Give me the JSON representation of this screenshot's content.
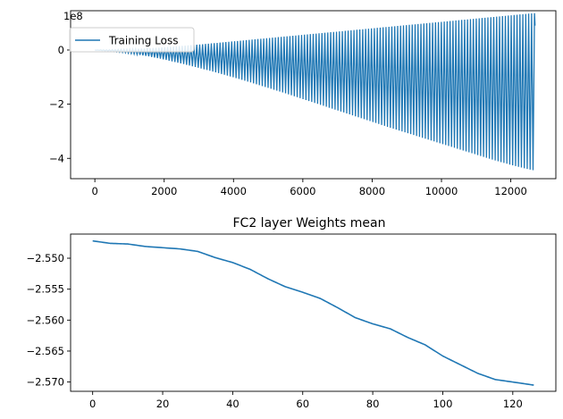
{
  "chart_data": [
    {
      "type": "line",
      "title": "",
      "xlabel": "",
      "ylabel": "",
      "y_offset_label": "1e8",
      "xlim": [
        -700,
        13300
      ],
      "ylim": [
        -4.75,
        1.45
      ],
      "x_ticks": [
        0,
        2000,
        4000,
        6000,
        8000,
        10000,
        12000
      ],
      "y_ticks": [
        -4,
        -2,
        0
      ],
      "y_tick_labels": [
        "−4",
        "−2",
        "0"
      ],
      "legend": {
        "position": "top-left",
        "entries": [
          "Training Loss"
        ]
      },
      "color": "#1f77b4",
      "series": [
        {
          "name": "Training Loss",
          "x": [
            0,
            500,
            1000,
            1500,
            2000,
            2500,
            3000,
            3500,
            4000,
            4500,
            5000,
            5500,
            6000,
            6500,
            7000,
            7500,
            8000,
            8500,
            9000,
            9500,
            10000,
            10500,
            11000,
            11500,
            12000,
            12500,
            12700
          ],
          "upper": [
            0.0,
            0.01,
            0.03,
            0.06,
            0.1,
            0.15,
            0.2,
            0.26,
            0.32,
            0.38,
            0.44,
            0.5,
            0.56,
            0.62,
            0.68,
            0.74,
            0.8,
            0.86,
            0.92,
            0.98,
            1.04,
            1.1,
            1.16,
            1.22,
            1.28,
            1.34,
            1.36
          ],
          "lower": [
            0.0,
            -0.05,
            -0.12,
            -0.22,
            -0.35,
            -0.5,
            -0.66,
            -0.83,
            -1.01,
            -1.2,
            -1.4,
            -1.6,
            -1.81,
            -2.02,
            -2.23,
            -2.44,
            -2.65,
            -2.86,
            -3.06,
            -3.26,
            -3.46,
            -3.66,
            -3.86,
            -4.06,
            -4.24,
            -4.4,
            -4.45
          ]
        }
      ]
    },
    {
      "type": "line",
      "title": "FC2 layer Weights mean",
      "xlabel": "",
      "ylabel": "",
      "xlim": [
        -6.3,
        132.3
      ],
      "ylim": [
        -2.5715,
        -2.5461
      ],
      "x_ticks": [
        0,
        20,
        40,
        60,
        80,
        100,
        120
      ],
      "y_ticks": [
        -2.55,
        -2.555,
        -2.56,
        -2.565,
        -2.57
      ],
      "y_tick_labels": [
        "−2.550",
        "−2.555",
        "−2.560",
        "−2.565",
        "−2.570"
      ],
      "color": "#1f77b4",
      "series": [
        {
          "name": "",
          "x": [
            0,
            5,
            10,
            15,
            20,
            25,
            30,
            35,
            40,
            45,
            50,
            55,
            60,
            65,
            70,
            75,
            80,
            85,
            90,
            95,
            100,
            105,
            110,
            115,
            120,
            126
          ],
          "values": [
            -2.5472,
            -2.5476,
            -2.5477,
            -2.5481,
            -2.5483,
            -2.5485,
            -2.5489,
            -2.5499,
            -2.5507,
            -2.5518,
            -2.5533,
            -2.5546,
            -2.5555,
            -2.5565,
            -2.558,
            -2.5596,
            -2.5606,
            -2.5614,
            -2.5628,
            -2.564,
            -2.5658,
            -2.5672,
            -2.5686,
            -2.5696,
            -2.57,
            -2.5705
          ]
        }
      ]
    }
  ]
}
